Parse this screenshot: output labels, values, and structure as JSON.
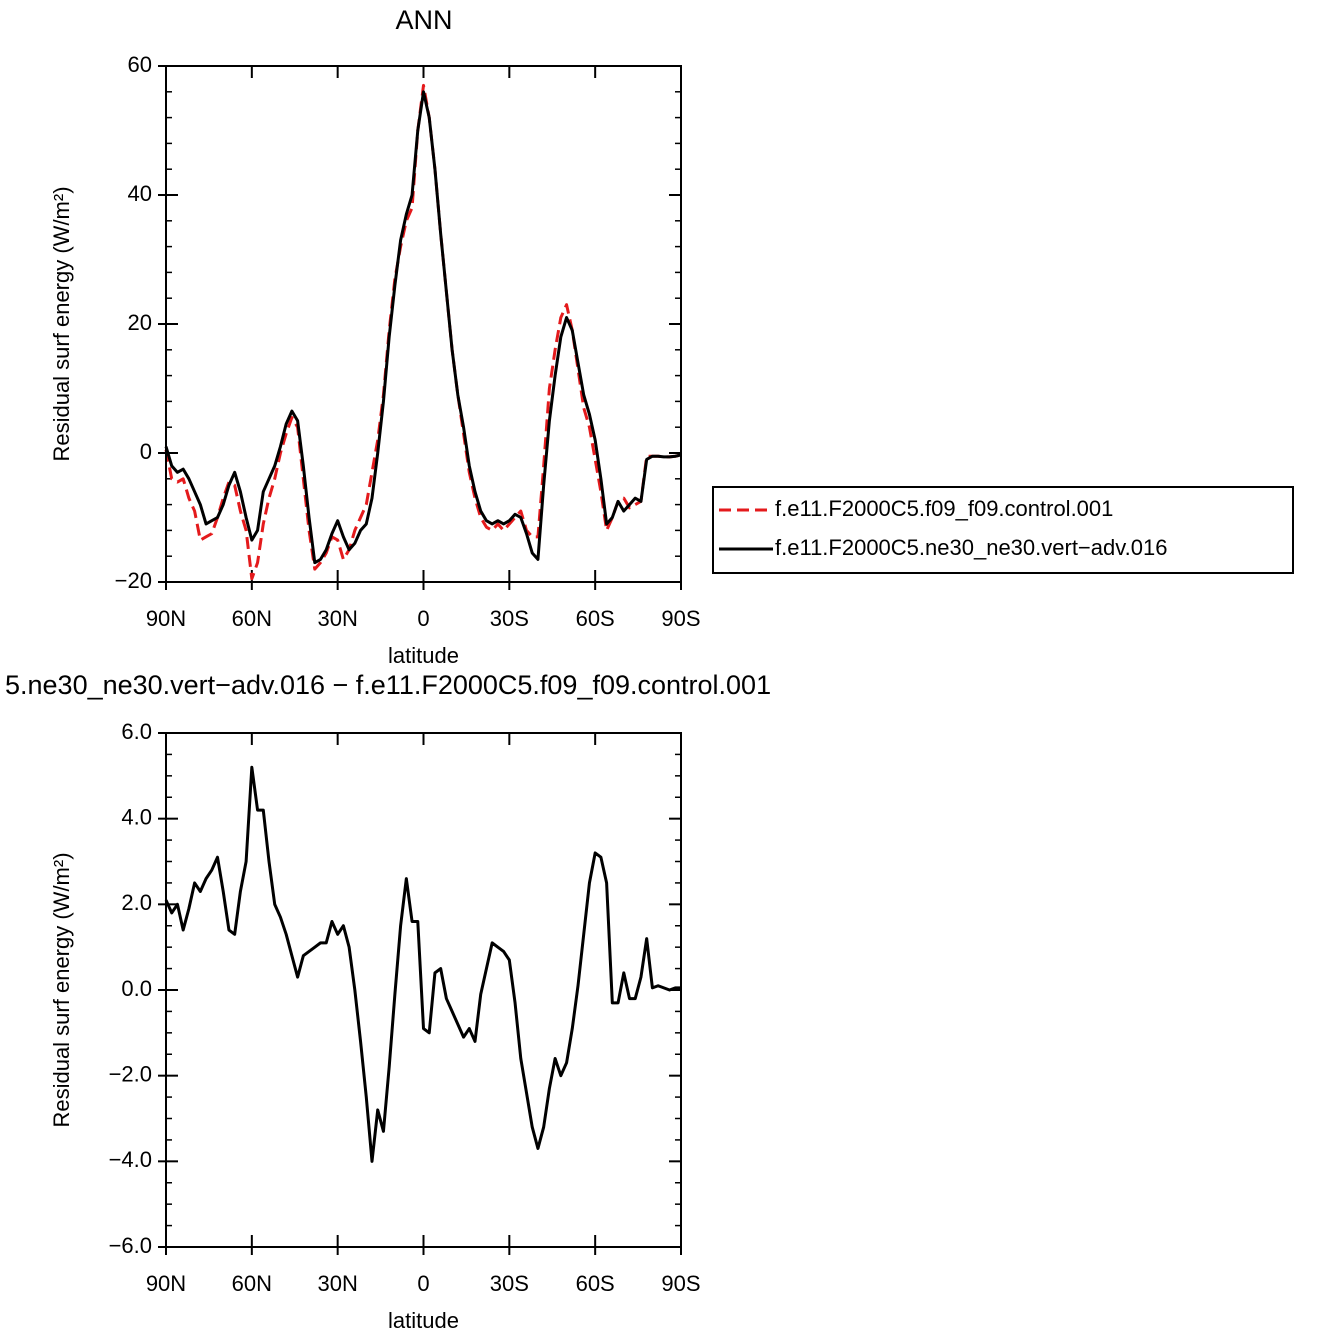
{
  "chart_data": [
    {
      "type": "line",
      "title": "ANN",
      "xlabel": "latitude",
      "ylabel": "Residual surf energy (W/m²)",
      "x": [
        90,
        88,
        86,
        84,
        82,
        80,
        78,
        76,
        74,
        72,
        70,
        68,
        66,
        64,
        62,
        60,
        58,
        56,
        54,
        52,
        50,
        48,
        46,
        44,
        42,
        40,
        38,
        36,
        34,
        32,
        30,
        28,
        26,
        24,
        22,
        20,
        18,
        16,
        14,
        12,
        10,
        8,
        6,
        4,
        2,
        0,
        -2,
        -4,
        -6,
        -8,
        -10,
        -12,
        -14,
        -16,
        -18,
        -20,
        -22,
        -24,
        -26,
        -28,
        -30,
        -32,
        -34,
        -36,
        -38,
        -40,
        -42,
        -44,
        -46,
        -48,
        -50,
        -52,
        -54,
        -56,
        -58,
        -60,
        -62,
        -64,
        -66,
        -68,
        -70,
        -72,
        -74,
        -76,
        -78,
        -80,
        -82,
        -84,
        -86,
        -88,
        -90
      ],
      "xlim": [
        90,
        -90
      ],
      "xticks": [
        {
          "value": 90,
          "label": "90N"
        },
        {
          "value": 60,
          "label": "60N"
        },
        {
          "value": 30,
          "label": "30N"
        },
        0,
        {
          "value": -30,
          "label": "30S"
        },
        {
          "value": -60,
          "label": "60S"
        },
        {
          "value": -90,
          "label": "90S"
        }
      ],
      "ylim": [
        -20,
        60
      ],
      "yticks": [
        {
          "value": -20,
          "label": "−20"
        },
        0,
        20,
        40,
        60
      ],
      "legend": "right",
      "series": [
        {
          "name": "f.e11.F2000C5.f09_f09.control.001",
          "color": "#e41a1c",
          "linestyle": "dashed",
          "values": [
            0.5,
            -4,
            -4.5,
            -4,
            -7,
            -9,
            -13.5,
            -13,
            -12.5,
            -10,
            -7,
            -4.5,
            -5,
            -9,
            -12,
            -19.5,
            -17,
            -11,
            -7,
            -4,
            0,
            3,
            5.5,
            4,
            -4,
            -12,
            -18,
            -17,
            -15.5,
            -13,
            -13.5,
            -16.5,
            -15,
            -12,
            -10,
            -8,
            -3,
            2,
            9,
            19,
            27,
            32,
            36,
            38,
            50,
            57,
            52,
            44,
            34,
            25,
            16,
            9,
            3,
            -3,
            -7,
            -10,
            -11.5,
            -12,
            -11,
            -12,
            -11,
            -10,
            -9,
            -12,
            -13,
            -13,
            -2,
            10,
            16,
            21,
            23,
            19,
            13,
            7,
            4,
            -1,
            -6,
            -12,
            -10,
            -7.5,
            -7,
            -8.5,
            -8,
            -7.5,
            -0.5,
            -0.5,
            -0.5,
            -0.6,
            -0.6,
            -0.5,
            -0.3
          ]
        },
        {
          "name": "f.e11.F2000C5.ne30_ne30.vert−adv.016",
          "color": "#000000",
          "linestyle": "solid",
          "values": [
            1,
            -2,
            -3,
            -2.5,
            -4,
            -6,
            -8,
            -11,
            -10.5,
            -10,
            -8,
            -5,
            -3,
            -6,
            -10,
            -13.5,
            -12,
            -6,
            -4,
            -2,
            1,
            4.5,
            6.5,
            5,
            -2,
            -10,
            -17,
            -16.5,
            -15,
            -12.5,
            -10.5,
            -13,
            -15,
            -14,
            -12,
            -11,
            -7,
            0,
            8,
            18,
            26,
            33,
            37,
            40,
            50,
            56,
            52,
            44,
            34,
            25,
            16,
            9,
            4,
            -2,
            -6,
            -9,
            -10.5,
            -11,
            -10.5,
            -11,
            -10.5,
            -9.5,
            -10,
            -12.5,
            -15.5,
            -16.5,
            -5,
            5,
            12,
            18,
            21,
            19,
            14,
            9,
            6,
            2,
            -4,
            -11,
            -10,
            -7.5,
            -9,
            -8,
            -7,
            -7.5,
            -1,
            -0.5,
            -0.5,
            -0.6,
            -0.6,
            -0.5,
            -0.3
          ]
        }
      ]
    },
    {
      "type": "line",
      "title": "5.ne30_ne30.vert−adv.016 − f.e11.F2000C5.f09_f09.control.001",
      "xlabel": "latitude",
      "ylabel": "Residual surf energy (W/m²)",
      "x": [
        90,
        88,
        86,
        84,
        82,
        80,
        78,
        76,
        74,
        72,
        70,
        68,
        66,
        64,
        62,
        60,
        58,
        56,
        54,
        52,
        50,
        48,
        46,
        44,
        42,
        40,
        38,
        36,
        34,
        32,
        30,
        28,
        26,
        24,
        22,
        20,
        18,
        16,
        14,
        12,
        10,
        8,
        6,
        4,
        2,
        0,
        -2,
        -4,
        -6,
        -8,
        -10,
        -12,
        -14,
        -16,
        -18,
        -20,
        -22,
        -24,
        -26,
        -28,
        -30,
        -32,
        -34,
        -36,
        -38,
        -40,
        -42,
        -44,
        -46,
        -48,
        -50,
        -52,
        -54,
        -56,
        -58,
        -60,
        -62,
        -64,
        -66,
        -68,
        -70,
        -72,
        -74,
        -76,
        -78,
        -80,
        -82,
        -84,
        -86,
        -88,
        -90
      ],
      "xlim": [
        90,
        -90
      ],
      "xticks": [
        {
          "value": 90,
          "label": "90N"
        },
        {
          "value": 60,
          "label": "60N"
        },
        {
          "value": 30,
          "label": "30N"
        },
        0,
        {
          "value": -30,
          "label": "30S"
        },
        {
          "value": -60,
          "label": "60S"
        },
        {
          "value": -90,
          "label": "90S"
        }
      ],
      "ylim": [
        -6,
        6
      ],
      "yticks": [
        {
          "value": -6,
          "label": "−6.0"
        },
        {
          "value": -4,
          "label": "−4.0"
        },
        {
          "value": -2,
          "label": "−2.0"
        },
        {
          "value": 0,
          "label": "0.0"
        },
        {
          "value": 2,
          "label": "2.0"
        },
        {
          "value": 4,
          "label": "4.0"
        },
        {
          "value": 6,
          "label": "6.0"
        }
      ],
      "color": "#000000",
      "values": [
        2.1,
        1.8,
        2.0,
        1.4,
        1.9,
        2.5,
        2.3,
        2.6,
        2.8,
        3.1,
        2.3,
        1.4,
        1.3,
        2.3,
        3.0,
        5.2,
        4.2,
        4.2,
        3.0,
        2.0,
        1.7,
        1.3,
        0.8,
        0.3,
        0.8,
        0.9,
        1.0,
        1.1,
        1.1,
        1.6,
        1.3,
        1.5,
        1.0,
        0.0,
        -1.2,
        -2.5,
        -4.0,
        -2.8,
        -3.3,
        -1.8,
        -0.1,
        1.5,
        2.6,
        1.6,
        1.6,
        -0.9,
        -1.0,
        0.4,
        0.5,
        -0.2,
        -0.5,
        -0.8,
        -1.1,
        -0.9,
        -1.2,
        -0.1,
        0.5,
        1.1,
        1.0,
        0.9,
        0.7,
        -0.3,
        -1.6,
        -2.4,
        -3.2,
        -3.7,
        -3.2,
        -2.3,
        -1.6,
        -2.0,
        -1.7,
        -0.9,
        0.1,
        1.3,
        2.5,
        3.2,
        3.1,
        2.5,
        -0.3,
        -0.3,
        0.4,
        -0.2,
        -0.2,
        0.3,
        1.2,
        0.05,
        0.1,
        0.05,
        0.0,
        0.05,
        0.05
      ]
    }
  ]
}
